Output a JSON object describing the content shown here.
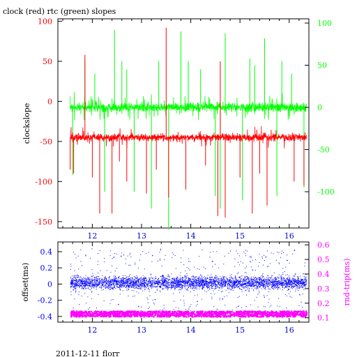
{
  "title": "clock (red) rtc (green) slopes",
  "footer": "2011-12-11 florr",
  "colors": {
    "clock": "#ff0000",
    "rtc": "#00ff00",
    "offset": "#0000ff",
    "rndtrip": "#ff00ff",
    "axis": "#000000",
    "blue_ticks": "#0000cc"
  },
  "chart_data": [
    {
      "type": "line",
      "title": "clock (red) rtc (green) slopes",
      "ylabel": "clockslope",
      "y2label": "",
      "xlim": [
        11.3,
        16.4
      ],
      "ylim": [
        -158,
        103
      ],
      "y2lim": [
        -143,
        105
      ],
      "xticks": [
        12,
        13,
        14,
        15,
        16
      ],
      "yticks": [
        -150,
        -100,
        -50,
        0,
        50,
        100
      ],
      "y2ticks": [
        -100,
        -50,
        0,
        50,
        100
      ],
      "series": [
        {
          "name": "clock (red)",
          "axis": "left",
          "x_range": [
            11.55,
            16.35
          ],
          "baseline": -45,
          "spikes": [
            {
              "x": 11.55,
              "y": -85
            },
            {
              "x": 11.62,
              "y": -90
            },
            {
              "x": 11.85,
              "y": 58
            },
            {
              "x": 12.0,
              "y": -95
            },
            {
              "x": 12.15,
              "y": -140
            },
            {
              "x": 12.4,
              "y": -140
            },
            {
              "x": 12.55,
              "y": -75
            },
            {
              "x": 12.7,
              "y": -100
            },
            {
              "x": 13.1,
              "y": -115
            },
            {
              "x": 13.3,
              "y": -85
            },
            {
              "x": 13.5,
              "y": 92
            },
            {
              "x": 13.55,
              "y": -120
            },
            {
              "x": 13.9,
              "y": -110
            },
            {
              "x": 14.3,
              "y": -80
            },
            {
              "x": 14.4,
              "y": -55
            },
            {
              "x": 14.55,
              "y": -143
            },
            {
              "x": 14.6,
              "y": 50
            },
            {
              "x": 14.7,
              "y": -145
            },
            {
              "x": 15.0,
              "y": -95
            },
            {
              "x": 15.25,
              "y": -140
            },
            {
              "x": 15.4,
              "y": -90
            },
            {
              "x": 15.55,
              "y": -130
            },
            {
              "x": 16.1,
              "y": -100
            },
            {
              "x": 16.3,
              "y": -105
            }
          ]
        },
        {
          "name": "rtc (green)",
          "axis": "right",
          "x_range": [
            11.55,
            16.35
          ],
          "baseline": 0,
          "spikes": [
            {
              "x": 11.6,
              "y": -80
            },
            {
              "x": 11.85,
              "y": 55
            },
            {
              "x": 12.05,
              "y": 40
            },
            {
              "x": 12.25,
              "y": -100
            },
            {
              "x": 12.45,
              "y": 92
            },
            {
              "x": 12.6,
              "y": 55
            },
            {
              "x": 12.7,
              "y": 45
            },
            {
              "x": 12.85,
              "y": -100
            },
            {
              "x": 13.2,
              "y": -120
            },
            {
              "x": 13.35,
              "y": 55
            },
            {
              "x": 13.55,
              "y": -145
            },
            {
              "x": 13.8,
              "y": 90
            },
            {
              "x": 13.95,
              "y": 55
            },
            {
              "x": 14.2,
              "y": 45
            },
            {
              "x": 14.5,
              "y": -105
            },
            {
              "x": 14.6,
              "y": -120
            },
            {
              "x": 14.7,
              "y": 88
            },
            {
              "x": 15.05,
              "y": -110
            },
            {
              "x": 15.2,
              "y": 58
            },
            {
              "x": 15.3,
              "y": 50
            },
            {
              "x": 15.5,
              "y": 82
            },
            {
              "x": 15.75,
              "y": -105
            },
            {
              "x": 15.85,
              "y": 55
            },
            {
              "x": 16.05,
              "y": 40
            },
            {
              "x": 16.3,
              "y": -95
            }
          ]
        }
      ]
    },
    {
      "type": "scatter",
      "ylabel": "offset(ms)",
      "y2label": "rnd-trip(ms)",
      "xlim": [
        11.3,
        16.4
      ],
      "ylim": [
        -0.47,
        0.52
      ],
      "y2lim": [
        0.07,
        0.62
      ],
      "xticks": [
        12,
        13,
        14,
        15,
        16
      ],
      "yticks": [
        -0.4,
        -0.2,
        0,
        0.2,
        0.4
      ],
      "y2ticks": [
        0.1,
        0.2,
        0.3,
        0.4,
        0.5,
        0.6
      ],
      "series": [
        {
          "name": "offset",
          "axis": "left",
          "x_range": [
            11.55,
            16.35
          ],
          "center": 0.02,
          "spread": 0.42
        },
        {
          "name": "rnd-trip",
          "axis": "right",
          "x_range": [
            11.55,
            16.35
          ],
          "center": 0.13,
          "spread": 0.02
        }
      ]
    }
  ]
}
